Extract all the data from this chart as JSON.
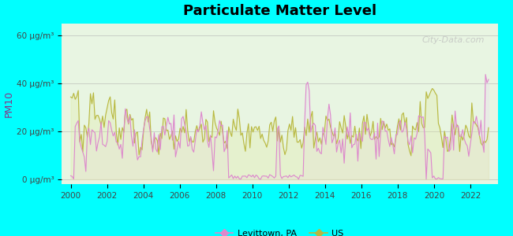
{
  "title": "Particulate Matter Level",
  "ylabel": "PM10",
  "background_color": "#00FFFF",
  "plot_bg_color_top": "#e8f5e9",
  "plot_bg_color_bottom": "#f0fff0",
  "levittown_color": "#dd88cc",
  "us_color": "#b8b840",
  "levittown_fill_color": "#e8d8f0",
  "us_fill_color": "#e0e8a0",
  "ytick_labels": [
    "0 μg/m³",
    "20 μg/m³",
    "40 μg/m³",
    "60 μg/m³"
  ],
  "ytick_values": [
    0,
    20,
    40,
    60
  ],
  "ylim": [
    -2,
    65
  ],
  "xlim_start": 1999.5,
  "xlim_end": 2023.5,
  "xtick_values": [
    2000,
    2002,
    2004,
    2006,
    2008,
    2010,
    2012,
    2014,
    2016,
    2018,
    2020,
    2022
  ],
  "watermark": "City-Data.com",
  "legend_levittown": "Levittown, PA",
  "legend_us": "US",
  "seed": 42
}
